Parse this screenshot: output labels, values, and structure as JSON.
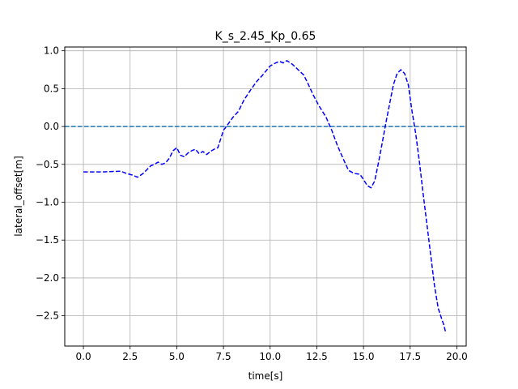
{
  "chart_data": {
    "type": "line",
    "title": "K_s_2.45_Kp_0.65",
    "xlabel": "time[s]",
    "ylabel": "lateral_offset[m]",
    "xlim": [
      -1.0,
      20.5
    ],
    "ylim": [
      -2.9,
      1.05
    ],
    "grid": true,
    "x_ticks": [
      0.0,
      2.5,
      5.0,
      7.5,
      10.0,
      12.5,
      15.0,
      17.5,
      20.0
    ],
    "x_tick_labels": [
      "0.0",
      "2.5",
      "5.0",
      "7.5",
      "10.0",
      "12.5",
      "15.0",
      "17.5",
      "20.0"
    ],
    "y_ticks": [
      1.0,
      0.5,
      0.0,
      -0.5,
      -1.0,
      -1.5,
      -2.0,
      -2.5
    ],
    "y_tick_labels": [
      "1.0",
      "0.5",
      "0.0",
      "−0.5",
      "−1.0",
      "−1.5",
      "−2.0",
      "−2.5"
    ],
    "reference": {
      "y": 0.0,
      "color": "#1f77b4",
      "style": "dashed"
    },
    "series": [
      {
        "color": "#0000ff",
        "style": "dashed",
        "x": [
          0.0,
          1.0,
          2.0,
          2.3,
          2.6,
          2.9,
          3.2,
          3.4,
          3.6,
          3.8,
          4.0,
          4.2,
          4.4,
          4.6,
          4.8,
          5.0,
          5.2,
          5.4,
          5.6,
          5.8,
          6.0,
          6.2,
          6.4,
          6.6,
          6.8,
          7.0,
          7.2,
          7.5,
          7.8,
          8.0,
          8.3,
          8.6,
          9.0,
          9.3,
          9.6,
          10.0,
          10.3,
          10.5,
          10.7,
          10.9,
          11.2,
          11.5,
          11.8,
          12.0,
          12.3,
          12.6,
          13.0,
          13.3,
          13.6,
          13.9,
          14.2,
          14.5,
          14.8,
          15.0,
          15.2,
          15.4,
          15.6,
          15.8,
          16.0,
          16.2,
          16.4,
          16.6,
          16.8,
          17.0,
          17.2,
          17.4,
          17.6,
          17.8,
          18.0,
          18.2,
          18.4,
          18.6,
          18.8,
          19.0,
          19.2,
          19.3,
          19.4
        ],
        "values": [
          -0.6,
          -0.6,
          -0.59,
          -0.62,
          -0.64,
          -0.67,
          -0.62,
          -0.57,
          -0.52,
          -0.5,
          -0.47,
          -0.5,
          -0.48,
          -0.42,
          -0.32,
          -0.28,
          -0.38,
          -0.4,
          -0.35,
          -0.32,
          -0.3,
          -0.36,
          -0.33,
          -0.37,
          -0.33,
          -0.3,
          -0.28,
          -0.05,
          0.05,
          0.12,
          0.2,
          0.35,
          0.5,
          0.6,
          0.68,
          0.8,
          0.84,
          0.86,
          0.84,
          0.87,
          0.82,
          0.75,
          0.68,
          0.58,
          0.42,
          0.28,
          0.12,
          -0.05,
          -0.25,
          -0.42,
          -0.58,
          -0.62,
          -0.63,
          -0.7,
          -0.78,
          -0.81,
          -0.72,
          -0.48,
          -0.22,
          0.05,
          0.3,
          0.55,
          0.7,
          0.75,
          0.7,
          0.55,
          0.2,
          -0.1,
          -0.48,
          -0.9,
          -1.3,
          -1.7,
          -2.1,
          -2.4,
          -2.55,
          -2.62,
          -2.72
        ]
      }
    ]
  }
}
